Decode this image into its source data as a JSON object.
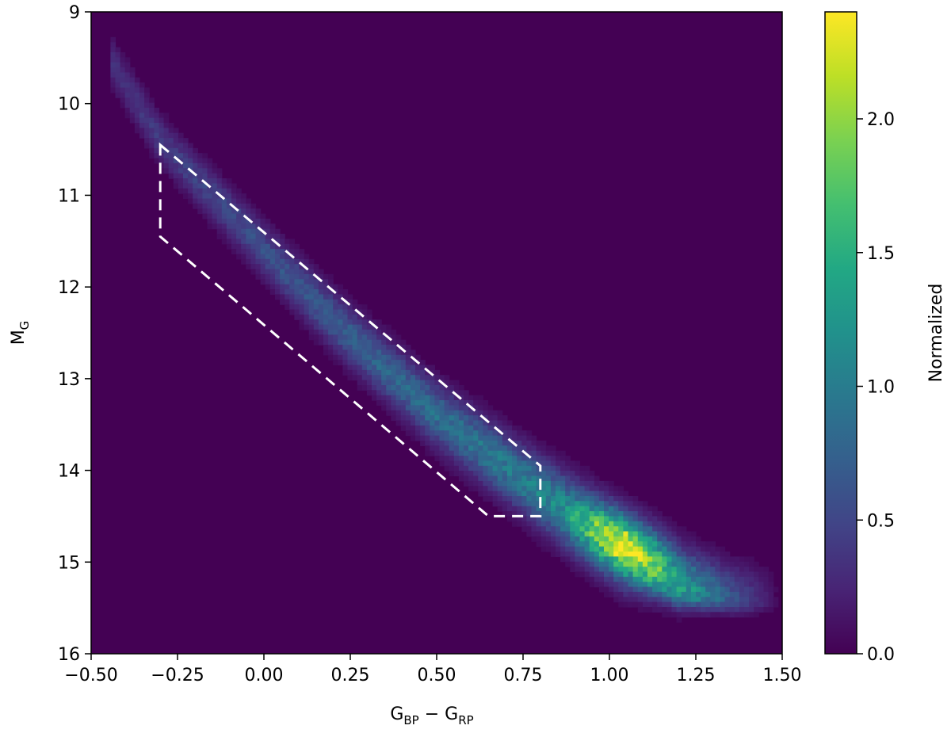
{
  "chart_data": {
    "type": "heatmap",
    "xlabel": {
      "main": "G",
      "sub1": "BP",
      "op": " − ",
      "main2": "G",
      "sub2": "RP"
    },
    "ylabel": {
      "main": "M",
      "sub": "G"
    },
    "colorbar_label": "Normalized",
    "xlim": [
      -0.5,
      1.5
    ],
    "ylim": [
      16,
      9
    ],
    "y_inverted": true,
    "x_ticks": [
      "−0.50",
      "−0.25",
      "0.00",
      "0.25",
      "0.50",
      "0.75",
      "1.00",
      "1.25",
      "1.50"
    ],
    "x_tick_values": [
      -0.5,
      -0.25,
      0.0,
      0.25,
      0.5,
      0.75,
      1.0,
      1.25,
      1.5
    ],
    "y_ticks": [
      "9",
      "10",
      "11",
      "12",
      "13",
      "14",
      "15",
      "16"
    ],
    "y_tick_values": [
      9,
      10,
      11,
      12,
      13,
      14,
      15,
      16
    ],
    "colorbar_ticks": [
      "0.0",
      "0.5",
      "1.0",
      "1.5",
      "2.0"
    ],
    "colorbar_tick_values": [
      0.0,
      0.5,
      1.0,
      1.5,
      2.0
    ],
    "colorbar_range": [
      0.0,
      2.4
    ],
    "colormap": "viridis",
    "background_color": "#440154",
    "selection_box": {
      "style": "dashed",
      "color": "#ffffff",
      "vertices": [
        [
          -0.3,
          10.45
        ],
        [
          0.8,
          13.95
        ],
        [
          0.8,
          14.5
        ],
        [
          0.65,
          14.5
        ],
        [
          -0.3,
          11.45
        ]
      ]
    },
    "density_model": {
      "description": "main-sequence ridge density",
      "ridge": [
        [
          -0.45,
          9.5
        ],
        [
          -0.3,
          10.4
        ],
        [
          0.0,
          11.6
        ],
        [
          0.25,
          12.55
        ],
        [
          0.5,
          13.4
        ],
        [
          0.75,
          14.1
        ],
        [
          0.9,
          14.5
        ],
        [
          1.0,
          14.75
        ],
        [
          1.1,
          15.05
        ],
        [
          1.2,
          15.3
        ],
        [
          1.35,
          15.42
        ],
        [
          1.45,
          15.45
        ]
      ],
      "peak": [
        1.05,
        14.82
      ],
      "peak_value": 2.4
    }
  }
}
